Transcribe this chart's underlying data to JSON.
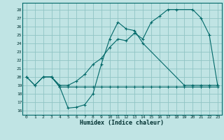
{
  "xlabel": "Humidex (Indice chaleur)",
  "xlim": [
    -0.5,
    23.5
  ],
  "ylim": [
    15.5,
    28.8
  ],
  "xticks": [
    0,
    1,
    2,
    3,
    4,
    5,
    6,
    7,
    8,
    9,
    10,
    11,
    12,
    13,
    14,
    15,
    16,
    17,
    18,
    19,
    20,
    21,
    22,
    23
  ],
  "yticks": [
    16,
    17,
    18,
    19,
    20,
    21,
    22,
    23,
    24,
    25,
    26,
    27,
    28
  ],
  "background_color": "#c0e4e4",
  "grid_color": "#90c4c4",
  "line_color": "#006868",
  "line1_x": [
    0,
    1,
    2,
    3,
    4,
    5,
    6,
    7,
    8,
    9,
    10,
    11,
    12,
    13,
    14,
    19,
    20,
    21,
    22,
    23
  ],
  "line1_y": [
    20,
    19,
    20,
    20,
    18.8,
    16.3,
    16.4,
    16.7,
    18.0,
    21.5,
    24.5,
    26.5,
    25.7,
    25.5,
    24.0,
    19.0,
    19.0,
    19.0,
    19.0,
    19.0
  ],
  "line2_x": [
    3,
    4,
    5,
    6,
    7,
    8,
    9,
    10,
    11,
    12,
    13,
    14,
    15,
    16,
    17,
    18,
    19,
    20,
    21,
    22,
    23
  ],
  "line2_y": [
    20,
    18.8,
    18.8,
    18.8,
    18.8,
    18.8,
    18.8,
    18.8,
    18.8,
    18.8,
    18.8,
    18.8,
    18.8,
    18.8,
    18.8,
    18.8,
    18.8,
    18.8,
    18.8,
    18.8,
    18.8
  ],
  "line3_x": [
    0,
    1,
    2,
    3,
    4,
    5,
    6,
    7,
    8,
    9,
    10,
    11,
    12,
    13,
    14,
    15,
    16,
    17,
    18,
    20,
    21,
    22,
    23
  ],
  "line3_y": [
    20,
    19,
    20,
    20.0,
    19.0,
    19.0,
    19.5,
    20.3,
    21.5,
    22.2,
    23.5,
    24.5,
    24.3,
    25.2,
    24.5,
    26.5,
    27.2,
    28.0,
    28.0,
    28.0,
    27.0,
    25.0,
    19.0
  ]
}
